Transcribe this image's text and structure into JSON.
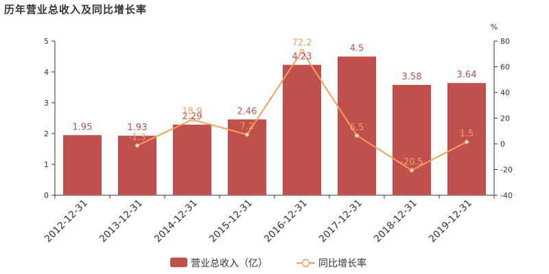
{
  "chart_data": {
    "title": "历年营业总收入及同比增长率",
    "type": "bar+line",
    "categories": [
      "2012-12-31",
      "2013-12-31",
      "2014-12-31",
      "2015-12-31",
      "2016-12-31",
      "2017-12-31",
      "2018-12-31",
      "2019-12-31"
    ],
    "series": [
      {
        "name": "营业总收入（亿）",
        "type": "bar",
        "axis": "left",
        "color": "#c0504d",
        "values": [
          1.95,
          1.93,
          2.29,
          2.46,
          4.23,
          4.5,
          3.58,
          3.64
        ]
      },
      {
        "name": "同比增长率",
        "type": "line",
        "axis": "right",
        "color": "#f5a05a",
        "values": [
          null,
          -1.3,
          18.9,
          7.2,
          72.2,
          6.5,
          -20.5,
          1.5
        ]
      }
    ],
    "left_axis": {
      "ylim": [
        0,
        5
      ],
      "ticks": [
        0,
        1,
        2,
        3,
        4,
        5
      ]
    },
    "right_axis": {
      "ylim": [
        -40,
        80
      ],
      "ticks": [
        -40,
        -20,
        0,
        20,
        40,
        60,
        80
      ],
      "unit": "%"
    },
    "legend": "bottom-center",
    "grid": false
  }
}
